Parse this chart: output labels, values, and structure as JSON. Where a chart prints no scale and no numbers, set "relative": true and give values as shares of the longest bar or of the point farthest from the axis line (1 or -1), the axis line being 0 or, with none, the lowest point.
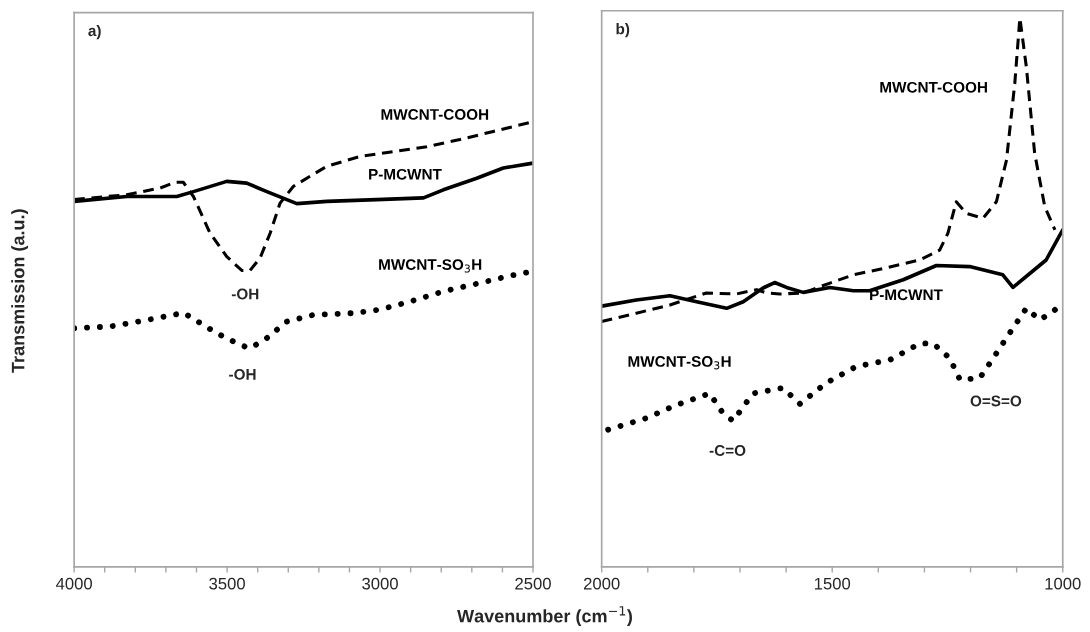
{
  "chart_data": [
    {
      "type": "line",
      "relative": true,
      "xlabel": "Wavenumber (cm$^{−1}$)",
      "ylabel": "Transmission (a.u.)",
      "xlim": [
        4000,
        2500
      ],
      "tick_labels": "x",
      "grid": false,
      "legend": false,
      "xticks": [
        4000,
        {
          "value": 3900,
          "label": null
        },
        {
          "value": 3800,
          "label": null
        },
        {
          "value": 3700,
          "label": null
        },
        {
          "value": 3600,
          "label": null
        },
        3500,
        {
          "value": 3400,
          "label": null
        },
        {
          "value": 3300,
          "label": null
        },
        {
          "value": 3200,
          "label": null
        },
        {
          "value": 3100,
          "label": null
        },
        3000,
        {
          "value": 2900,
          "label": null
        },
        {
          "value": 2800,
          "label": null
        },
        {
          "value": 2700,
          "label": null
        },
        {
          "value": 2600,
          "label": null
        },
        2500
      ],
      "annotations": [
        "a)",
        "-OH",
        "-OH"
      ],
      "series": [
        {
          "name": "MWCNT-COOH",
          "color": "#000000",
          "line_style": "dashed",
          "x": [
            4000,
            3828,
            3719,
            3670,
            3643,
            3610,
            3556,
            3501,
            3452,
            3425,
            3392,
            3359,
            3327,
            3283,
            3174,
            3065,
            2956,
            2847,
            2739,
            2630,
            2500
          ],
          "values": [
            0.825,
            0.836,
            0.851,
            0.864,
            0.864,
            0.832,
            0.75,
            0.697,
            0.666,
            0.666,
            0.694,
            0.75,
            0.817,
            0.855,
            0.9,
            0.922,
            0.933,
            0.944,
            0.96,
            0.978,
            1.0
          ]
        },
        {
          "name": "P-MCWNT",
          "color": "#000000",
          "line_style": "solid",
          "x": [
            4000,
            3828,
            3664,
            3610,
            3501,
            3436,
            3370,
            3272,
            3174,
            3011,
            2858,
            2793,
            2684,
            2597,
            2500
          ],
          "values": [
            0.821,
            0.832,
            0.832,
            0.843,
            0.866,
            0.862,
            0.843,
            0.816,
            0.821,
            0.825,
            0.829,
            0.847,
            0.873,
            0.896,
            0.907
          ]
        },
        {
          "name": "MWCNT-SO$_{3}$H",
          "color": "#000000",
          "line_style": "dotted",
          "x": [
            4000,
            3882,
            3774,
            3676,
            3643,
            3588,
            3534,
            3458,
            3425,
            3370,
            3305,
            3218,
            3087,
            3000,
            2902,
            2793,
            2684,
            2575,
            2500
          ],
          "values": [
            0.536,
            0.54,
            0.553,
            0.566,
            0.571,
            0.548,
            0.525,
            0.499,
            0.491,
            0.514,
            0.551,
            0.566,
            0.57,
            0.578,
            0.596,
            0.619,
            0.636,
            0.654,
            0.664
          ]
        }
      ]
    },
    {
      "type": "line",
      "relative": true,
      "xlim": [
        2000,
        1000
      ],
      "tick_labels": "x",
      "grid": false,
      "legend": false,
      "xticks": [
        2000,
        {
          "value": 1900,
          "label": null
        },
        {
          "value": 1800,
          "label": null
        },
        {
          "value": 1700,
          "label": null
        },
        {
          "value": 1600,
          "label": null
        },
        1500,
        {
          "value": 1400,
          "label": null
        },
        {
          "value": 1300,
          "label": null
        },
        {
          "value": 1200,
          "label": null
        },
        {
          "value": 1100,
          "label": null
        },
        1000
      ],
      "annotations": [
        "b)",
        "-C=O",
        "O=S=O"
      ],
      "series": [
        {
          "name": "MWCNT-COOH",
          "color": "#000000",
          "line_style": "dashed",
          "x": [
            2000,
            1925,
            1852,
            1773,
            1708,
            1664,
            1643,
            1614,
            1563,
            1505,
            1454,
            1382,
            1310,
            1267,
            1249,
            1231,
            1209,
            1173,
            1144,
            1122,
            1104,
            1093,
            1079,
            1061,
            1039,
            1017
          ],
          "values": [
            0.447,
            0.462,
            0.477,
            0.499,
            0.497,
            0.505,
            0.499,
            0.497,
            0.499,
            0.517,
            0.532,
            0.545,
            0.559,
            0.577,
            0.608,
            0.665,
            0.644,
            0.635,
            0.665,
            0.741,
            0.881,
            1.0,
            0.911,
            0.754,
            0.656,
            0.614
          ]
        },
        {
          "name": "P-MCWNT",
          "color": "#000000",
          "line_style": "solid",
          "x": [
            2000,
            1925,
            1852,
            1794,
            1729,
            1693,
            1650,
            1625,
            1599,
            1563,
            1505,
            1454,
            1419,
            1346,
            1274,
            1202,
            1130,
            1108,
            1036,
            1000
          ],
          "values": [
            0.475,
            0.486,
            0.494,
            0.483,
            0.471,
            0.483,
            0.508,
            0.518,
            0.509,
            0.5,
            0.509,
            0.503,
            0.503,
            0.523,
            0.549,
            0.547,
            0.532,
            0.509,
            0.559,
            0.614
          ]
        },
        {
          "name": "MWCNT-SO$_{3}$H",
          "color": "#000000",
          "line_style": "dotted",
          "x": [
            1986,
            1903,
            1838,
            1766,
            1737,
            1715,
            1672,
            1607,
            1570,
            1513,
            1448,
            1375,
            1310,
            1281,
            1245,
            1223,
            1180,
            1151,
            1108,
            1079,
            1050,
            1021,
            1003
          ],
          "values": [
            0.25,
            0.271,
            0.295,
            0.316,
            0.28,
            0.266,
            0.316,
            0.326,
            0.297,
            0.335,
            0.365,
            0.377,
            0.407,
            0.407,
            0.38,
            0.341,
            0.344,
            0.38,
            0.435,
            0.471,
            0.45,
            0.465,
            0.479
          ]
        }
      ]
    }
  ]
}
